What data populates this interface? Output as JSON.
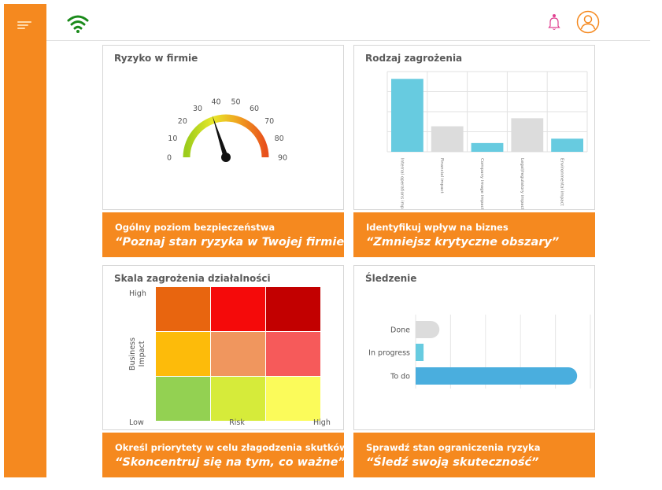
{
  "sidebar": {
    "menu_icon": "hamburger-icon",
    "color": "#f5891f"
  },
  "topbar": {
    "status_icon": "wifi-icon",
    "status_color": "#1a8a1a",
    "notifications_icon": "bell-icon",
    "profile_icon": "user-avatar-icon",
    "accent_color": "#f5891f"
  },
  "cards": {
    "gauge": {
      "title": "Ryzyko w firmie",
      "chart_data": {
        "type": "gauge",
        "min": 0,
        "max": 90,
        "ticks": [
          "0",
          "10",
          "20",
          "30",
          "40",
          "50",
          "60",
          "70",
          "80",
          "90"
        ],
        "value": 36,
        "color_stops": [
          "#9ccc1c",
          "#e8e82a",
          "#f0a020",
          "#e8501c"
        ]
      }
    },
    "bar": {
      "title": "Rodzaj zagrożenia",
      "chart_data": {
        "type": "bar",
        "categories": [
          "Internal operations impact",
          "Financial impact",
          "Company image impact",
          "Legal/regulatory impact",
          "Environmental impact"
        ],
        "values": [
          100,
          35,
          12,
          46,
          18
        ],
        "colors": [
          "#67cbe0",
          "#dcdcdc",
          "#67cbe0",
          "#dcdcdc",
          "#67cbe0"
        ],
        "ylim": [
          0,
          110
        ],
        "grid": true
      }
    },
    "matrix": {
      "title": "Skala zagrożenia działalności",
      "chart_data": {
        "type": "heatmap",
        "xlabel": "Risk",
        "ylabel": "Business Impact",
        "x_ticks": [
          "Low",
          "High"
        ],
        "y_ticks": [
          "High"
        ],
        "rows": [
          [
            "#e8650f",
            "#f50a0a",
            "#c20000"
          ],
          [
            "#fdbb0a",
            "#f0965e",
            "#f65a5a"
          ],
          [
            "#93d152",
            "#d6eb3a",
            "#fbfb5a"
          ]
        ]
      }
    },
    "tracking": {
      "title": "Śledzenie",
      "chart_data": {
        "type": "bar",
        "orientation": "horizontal",
        "categories": [
          "Done",
          "In progress",
          "To do"
        ],
        "values": [
          9,
          3,
          61
        ],
        "colors": [
          "#dcdcdc",
          "#67cbe0",
          "#4aaede"
        ],
        "xlim": [
          0,
          66
        ],
        "grid": true
      }
    }
  },
  "banners": [
    {
      "line1": "Ogólny poziom bezpieczeństwa",
      "line2": "“Poznaj stan ryzyka w Twojej firmie”"
    },
    {
      "line1": "Identyfikuj wpływ na biznes",
      "line2": "“Zmniejsz krytyczne obszary”"
    },
    {
      "line1": "Określ priorytety w celu złagodzenia skutków",
      "line2": "“Skoncentruj się na tym, co ważne”"
    },
    {
      "line1": "Sprawdź stan ograniczenia ryzyka",
      "line2": "“Śledź swoją skuteczność”"
    }
  ]
}
